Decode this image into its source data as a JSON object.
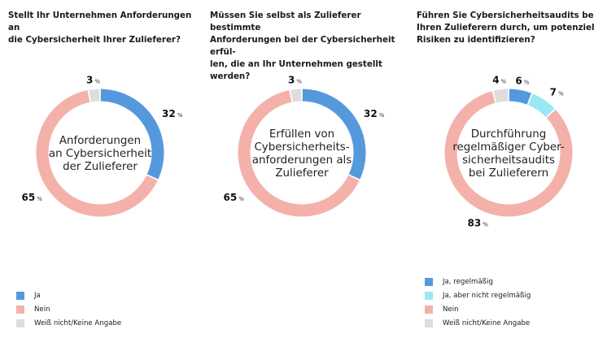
{
  "colors": {
    "ja": "#5599dd",
    "ja_nicht_regelmaessig": "#99e8f2",
    "nein": "#f4b1aa",
    "weiss_nicht": "#dddddd"
  },
  "chart_data": [
    {
      "type": "pie",
      "title": [
        "Stellt Ihr Unternehmen Anforderungen an",
        "die Cybersicherheit Ihrer Zulieferer?"
      ],
      "center_label": [
        "Anforderungen",
        "an Cybersicherheit",
        "der Zulieferer"
      ],
      "slices": [
        {
          "label": "Ja",
          "value": 32,
          "color": "#5599dd"
        },
        {
          "label": "Nein",
          "value": 65,
          "color": "#f4b1aa"
        },
        {
          "label": "Weiß nicht/Keine Angabe",
          "value": 3,
          "color": "#dddddd"
        }
      ],
      "unit": "%",
      "legend": [
        "Ja",
        "Nein",
        "Weiß nicht/Keine Angabe"
      ]
    },
    {
      "type": "pie",
      "title": [
        "Müssen Sie selbst als Zulieferer bestimmte",
        "Anforderungen bei der Cybersicherheit erfül-",
        "len, die an Ihr Unternehmen gestellt werden?"
      ],
      "center_label": [
        "Erfüllen von",
        "Cybersicherheits-",
        "anforderungen als",
        "Zulieferer"
      ],
      "slices": [
        {
          "label": "Ja",
          "value": 32,
          "color": "#5599dd"
        },
        {
          "label": "Nein",
          "value": 65,
          "color": "#f4b1aa"
        },
        {
          "label": "Weiß nicht/Keine Angabe",
          "value": 3,
          "color": "#dddddd"
        }
      ],
      "unit": "%",
      "legend": []
    },
    {
      "type": "pie",
      "title": [
        "Führen Sie Cybersicherheitsaudits bei",
        "Ihren Zulieferern durch, um potenzielle",
        "Risiken zu identifizieren?"
      ],
      "center_label": [
        "Durchführung",
        "regelmäßiger Cyber-",
        "sicherheitsaudits",
        "bei Zulieferern"
      ],
      "slices": [
        {
          "label": "Ja, regelmäßig",
          "value": 6,
          "color": "#5599dd"
        },
        {
          "label": "Ja, aber nicht regelmäßig",
          "value": 7,
          "color": "#99e8f2"
        },
        {
          "label": "Nein",
          "value": 83,
          "color": "#f4b1aa"
        },
        {
          "label": "Weiß nicht/Keine Angabe",
          "value": 4,
          "color": "#dddddd"
        }
      ],
      "unit": "%",
      "legend": [
        "Ja, regelmäßig",
        "Ja, aber nicht regelmäßig",
        "Nein",
        "Weiß nicht/Keine Angabe"
      ]
    }
  ]
}
